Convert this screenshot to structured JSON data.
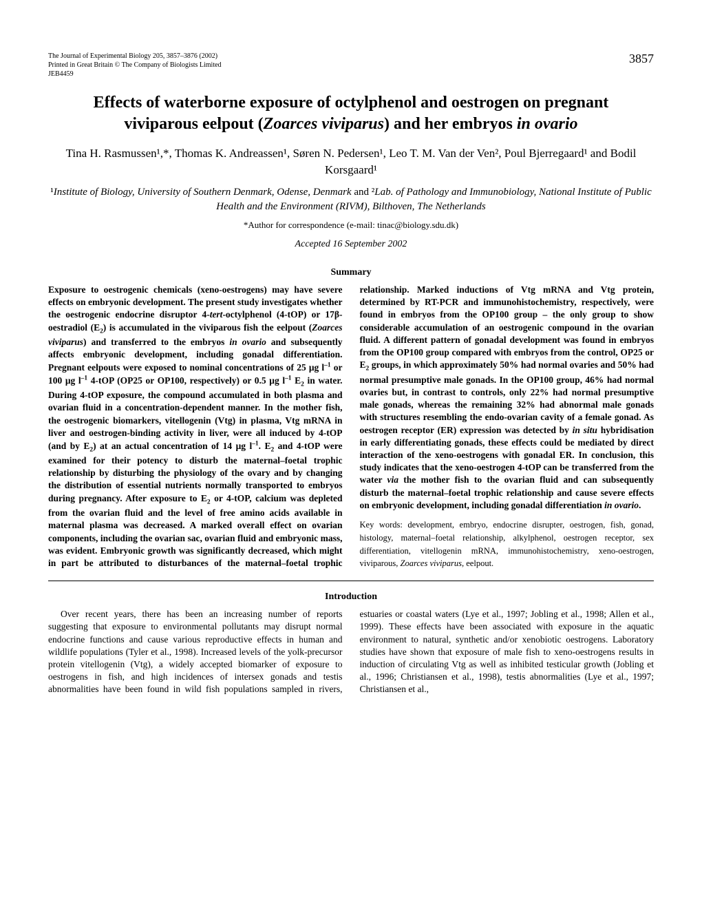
{
  "journal": {
    "line1": "The Journal of Experimental Biology 205, 3857–3876 (2002)",
    "line2": "Printed in Great Britain © The Company of Biologists Limited",
    "line3": "JEB4459"
  },
  "pageNumber": "3857",
  "title": {
    "line1": "Effects of waterborne exposure of octylphenol and oestrogen on pregnant",
    "line2_prefix": "viviparous eelpout (",
    "line2_italic": "Zoarces viviparus",
    "line2_mid": ") and her embryos ",
    "line2_suffix": "in ovario"
  },
  "authors": "Tina H. Rasmussen¹,*, Thomas K. Andreassen¹, Søren N. Pedersen¹, Leo T. M. Van der Ven², Poul Bjerregaard¹ and Bodil Korsgaard¹",
  "affiliations": {
    "prefix1": "¹",
    "text1": "Institute of Biology, University of Southern Denmark, Odense, Denmark",
    "and": " and ",
    "prefix2": "²",
    "text2": "Lab. of Pathology and Immunobiology, National Institute of Public Health and the Environment (RIVM), Bilthoven, The Netherlands"
  },
  "correspondence": "*Author for correspondence (e-mail: tinac@biology.sdu.dk)",
  "accepted": "Accepted 16 September 2002",
  "summaryHeading": "Summary",
  "summary": "Exposure to oestrogenic chemicals (xeno-oestrogens) may have severe effects on embryonic development. The present study investigates whether the oestrogenic endocrine disruptor 4-tert-octylphenol (4-tOP) or 17β-oestradiol (E₂) is accumulated in the viviparous fish the eelpout (Zoarces viviparus) and transferred to the embryos in ovario and subsequently affects embryonic development, including gonadal differentiation. Pregnant eelpouts were exposed to nominal concentrations of 25 μg l⁻¹ or 100 μg l⁻¹ 4-tOP (OP25 or OP100, respectively) or 0.5 μg l⁻¹ E₂ in water. During 4-tOP exposure, the compound accumulated in both plasma and ovarian fluid in a concentration-dependent manner. In the mother fish, the oestrogenic biomarkers, vitellogenin (Vtg) in plasma, Vtg mRNA in liver and oestrogen-binding activity in liver, were all induced by 4-tOP (and by E₂) at an actual concentration of 14 μg l⁻¹. E₂ and 4-tOP were examined for their potency to disturb the maternal–foetal trophic relationship by disturbing the physiology of the ovary and by changing the distribution of essential nutrients normally transported to embryos during pregnancy. After exposure to E₂ or 4-tOP, calcium was depleted from the ovarian fluid and the level of free amino acids available in maternal plasma was decreased. A marked overall effect on ovarian components, including the ovarian sac, ovarian fluid and embryonic mass, was evident. Embryonic growth was significantly decreased, which might in part be attributed to disturbances of the maternal–foetal trophic relationship. Marked inductions of Vtg mRNA and Vtg protein, determined by RT-PCR and immunohistochemistry, respectively, were found in embryos from the OP100 group – the only group to show considerable accumulation of an oestrogenic compound in the ovarian fluid. A different pattern of gonadal development was found in embryos from the OP100 group compared with embryos from the control, OP25 or E₂ groups, in which approximately 50% had normal ovaries and 50% had normal presumptive male gonads. In the OP100 group, 46% had normal ovaries but, in contrast to controls, only 22% had normal presumptive male gonads, whereas the remaining 32% had abnormal male gonads with structures resembling the endo-ovarian cavity of a female gonad. As oestrogen receptor (ER) expression was detected by in situ hybridisation in early differentiating gonads, these effects could be mediated by direct interaction of the xeno-oestrogens with gonadal ER. In conclusion, this study indicates that the xeno-oestrogen 4-tOP can be transferred from the water via the mother fish to the ovarian fluid and can subsequently disturb the maternal–foetal trophic relationship and cause severe effects on embryonic development, including gonadal differentiation in ovario.",
  "keywords": {
    "prefix": "Key words: development, embryo, endocrine disrupter, oestrogen, fish, gonad, histology, maternal–foetal relationship, alkylphenol, oestrogen receptor, sex differentiation, vitellogenin mRNA, immunohistochemistry, xeno-oestrogen, viviparous, ",
    "italic": "Zoarces viviparus",
    "suffix": ", eelpout."
  },
  "introHeading": "Introduction",
  "intro": "Over recent years, there has been an increasing number of reports suggesting that exposure to environmental pollutants may disrupt normal endocrine functions and cause various reproductive effects in human and wildlife populations (Tyler et al., 1998). Increased levels of the yolk-precursor protein vitellogenin (Vtg), a widely accepted biomarker of exposure to oestrogens in fish, and high incidences of intersex gonads and testis abnormalities have been found in wild fish populations sampled in rivers, estuaries or coastal waters (Lye et al., 1997; Jobling et al., 1998; Allen et al., 1999). These effects have been associated with exposure in the aquatic environment to natural, synthetic and/or xenobiotic oestrogens. Laboratory studies have shown that exposure of male fish to xeno-oestrogens results in induction of circulating Vtg as well as inhibited testicular growth (Jobling et al., 1996; Christiansen et al., 1998), testis abnormalities (Lye et al., 1997; Christiansen et al.,"
}
